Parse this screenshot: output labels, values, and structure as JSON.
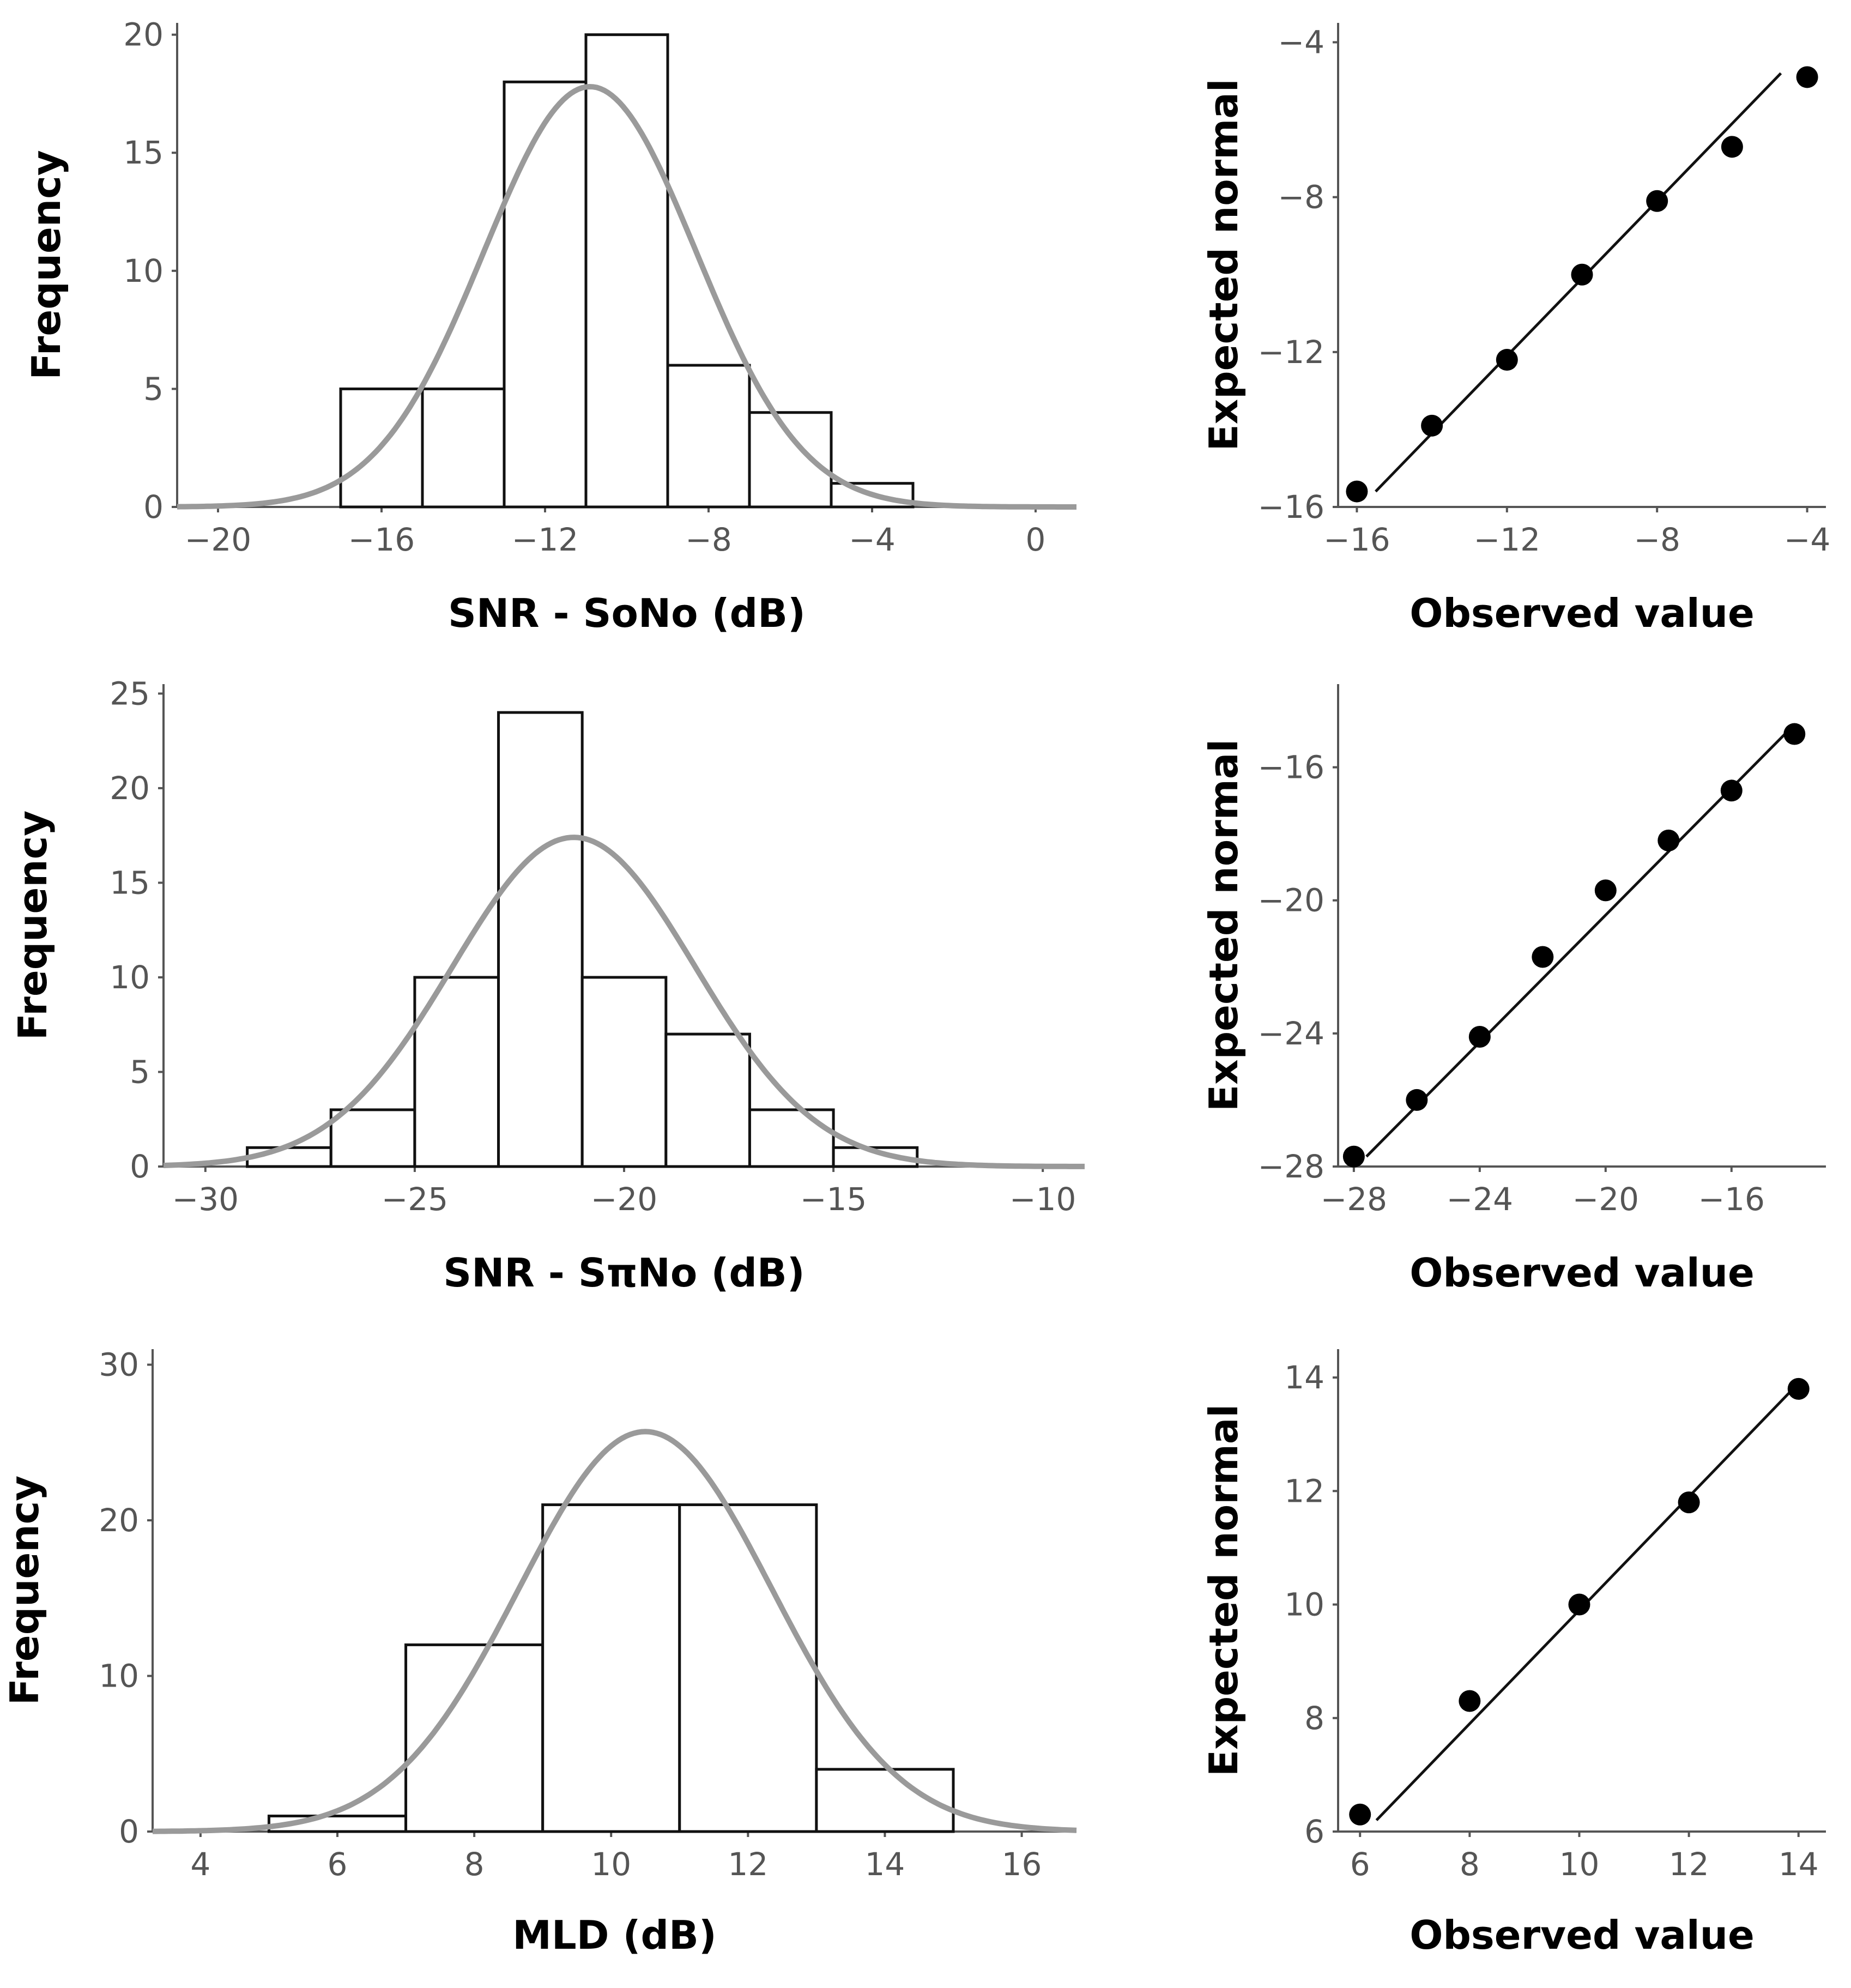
{
  "chart_data": [
    {
      "type": "bar",
      "panel": "histogram-sono",
      "xlabel": "SNR - SoNo (dB)",
      "ylabel": "Frequency",
      "xlim": [
        -21,
        1
      ],
      "ylim": [
        0,
        20.5
      ],
      "xticks": [
        -20,
        -16,
        -12,
        -8,
        -4,
        0
      ],
      "xtick_labels": [
        "−20",
        "−16",
        "−12",
        "−8",
        "−4",
        "0"
      ],
      "yticks": [
        0,
        5,
        10,
        15,
        20
      ],
      "ytick_labels": [
        "0",
        "5",
        "10",
        "15",
        "20"
      ],
      "bins": [
        [
          -17,
          -15
        ],
        [
          -15,
          -13
        ],
        [
          -13,
          -11
        ],
        [
          -11,
          -9
        ],
        [
          -9,
          -7
        ],
        [
          -7,
          -5
        ],
        [
          -5,
          -3
        ]
      ],
      "values": [
        5,
        5,
        18,
        20,
        6,
        4,
        1
      ],
      "normal_curve": {
        "mean": -10.9,
        "sd": 2.6,
        "peak": 17.8
      },
      "grid": false
    },
    {
      "type": "scatter",
      "panel": "qq-sono",
      "xlabel": "Observed value",
      "ylabel": "Expected normal",
      "xlim": [
        -16.5,
        -3.5
      ],
      "ylim": [
        -16,
        -3.5
      ],
      "xticks": [
        -16,
        -12,
        -8,
        -4
      ],
      "xtick_labels": [
        "−16",
        "−12",
        "−8",
        "−4"
      ],
      "yticks": [
        -16,
        -12,
        -8,
        -4
      ],
      "ytick_labels": [
        "−16",
        "−12",
        "−8",
        "−4"
      ],
      "x": [
        -16,
        -14,
        -12,
        -10,
        -8,
        -6,
        -4
      ],
      "y": [
        -15.6,
        -13.9,
        -12.2,
        -10.0,
        -8.1,
        -6.7,
        -4.9
      ],
      "reference_line": [
        [
          -15.5,
          -15.6
        ],
        [
          -4.7,
          -4.8
        ]
      ],
      "grid": false
    },
    {
      "type": "bar",
      "panel": "histogram-spino",
      "xlabel": "SNR - SπNo (dB)",
      "ylabel": "Frequency",
      "xlim": [
        -31,
        -9
      ],
      "ylim": [
        0,
        25.5
      ],
      "xticks": [
        -30,
        -25,
        -20,
        -15,
        -10
      ],
      "xtick_labels": [
        "−30",
        "−25",
        "−20",
        "−15",
        "−10"
      ],
      "yticks": [
        0,
        5,
        10,
        15,
        20,
        25
      ],
      "ytick_labels": [
        "0",
        "5",
        "10",
        "15",
        "20",
        "25"
      ],
      "bins": [
        [
          -29,
          -27
        ],
        [
          -27,
          -25
        ],
        [
          -25,
          -23
        ],
        [
          -23,
          -21
        ],
        [
          -21,
          -19
        ],
        [
          -19,
          -17
        ],
        [
          -17,
          -15
        ],
        [
          -15,
          -13
        ]
      ],
      "values": [
        1,
        3,
        10,
        24,
        10,
        7,
        3,
        1
      ],
      "normal_curve": {
        "mean": -21.2,
        "sd": 2.9,
        "peak": 17.4
      },
      "grid": false
    },
    {
      "type": "scatter",
      "panel": "qq-spino",
      "xlabel": "Observed value",
      "ylabel": "Expected normal",
      "xlim": [
        -28.5,
        -13
      ],
      "ylim": [
        -28,
        -13.5
      ],
      "xticks": [
        -28,
        -24,
        -20,
        -16
      ],
      "xtick_labels": [
        "−28",
        "−24",
        "−20",
        "−16"
      ],
      "yticks": [
        -28,
        -24,
        -20,
        -16
      ],
      "ytick_labels": [
        "−28",
        "−24",
        "−20",
        "−16"
      ],
      "x": [
        -28,
        -26,
        -24,
        -22,
        -20,
        -18,
        -16,
        -14
      ],
      "y": [
        -27.7,
        -26.0,
        -24.1,
        -21.7,
        -19.7,
        -18.2,
        -16.7,
        -15.0
      ],
      "reference_line": [
        [
          -27.6,
          -27.7
        ],
        [
          -14.3,
          -15.0
        ]
      ],
      "grid": false
    },
    {
      "type": "bar",
      "panel": "histogram-mld",
      "xlabel": "MLD (dB)",
      "ylabel": "Frequency",
      "xlim": [
        3.3,
        16.8
      ],
      "ylim": [
        0,
        31
      ],
      "xticks": [
        4,
        6,
        8,
        10,
        12,
        14,
        16
      ],
      "xtick_labels": [
        "4",
        "6",
        "8",
        "10",
        "12",
        "14",
        "16"
      ],
      "yticks": [
        0,
        10,
        20,
        30
      ],
      "ytick_labels": [
        "0",
        "10",
        "20",
        "30"
      ],
      "bins": [
        [
          5,
          7
        ],
        [
          7,
          9
        ],
        [
          9,
          11
        ],
        [
          11,
          13
        ],
        [
          13,
          15
        ]
      ],
      "values": [
        1,
        12,
        21,
        21,
        4
      ],
      "normal_curve": {
        "mean": 10.5,
        "sd": 1.85,
        "peak": 25.7
      },
      "grid": false
    },
    {
      "type": "scatter",
      "panel": "qq-mld",
      "xlabel": "Observed value",
      "ylabel": "Expected normal",
      "xlim": [
        5.6,
        14.5
      ],
      "ylim": [
        6,
        14.5
      ],
      "xticks": [
        6,
        8,
        10,
        12,
        14
      ],
      "xtick_labels": [
        "6",
        "8",
        "10",
        "12",
        "14"
      ],
      "yticks": [
        6,
        8,
        10,
        12,
        14
      ],
      "ytick_labels": [
        "6",
        "8",
        "10",
        "12",
        "14"
      ],
      "x": [
        6,
        8,
        10,
        12,
        14
      ],
      "y": [
        6.3,
        8.3,
        10.0,
        11.8,
        13.8
      ],
      "reference_line": [
        [
          6.3,
          6.2
        ],
        [
          14.0,
          13.9
        ]
      ],
      "grid": false
    }
  ]
}
